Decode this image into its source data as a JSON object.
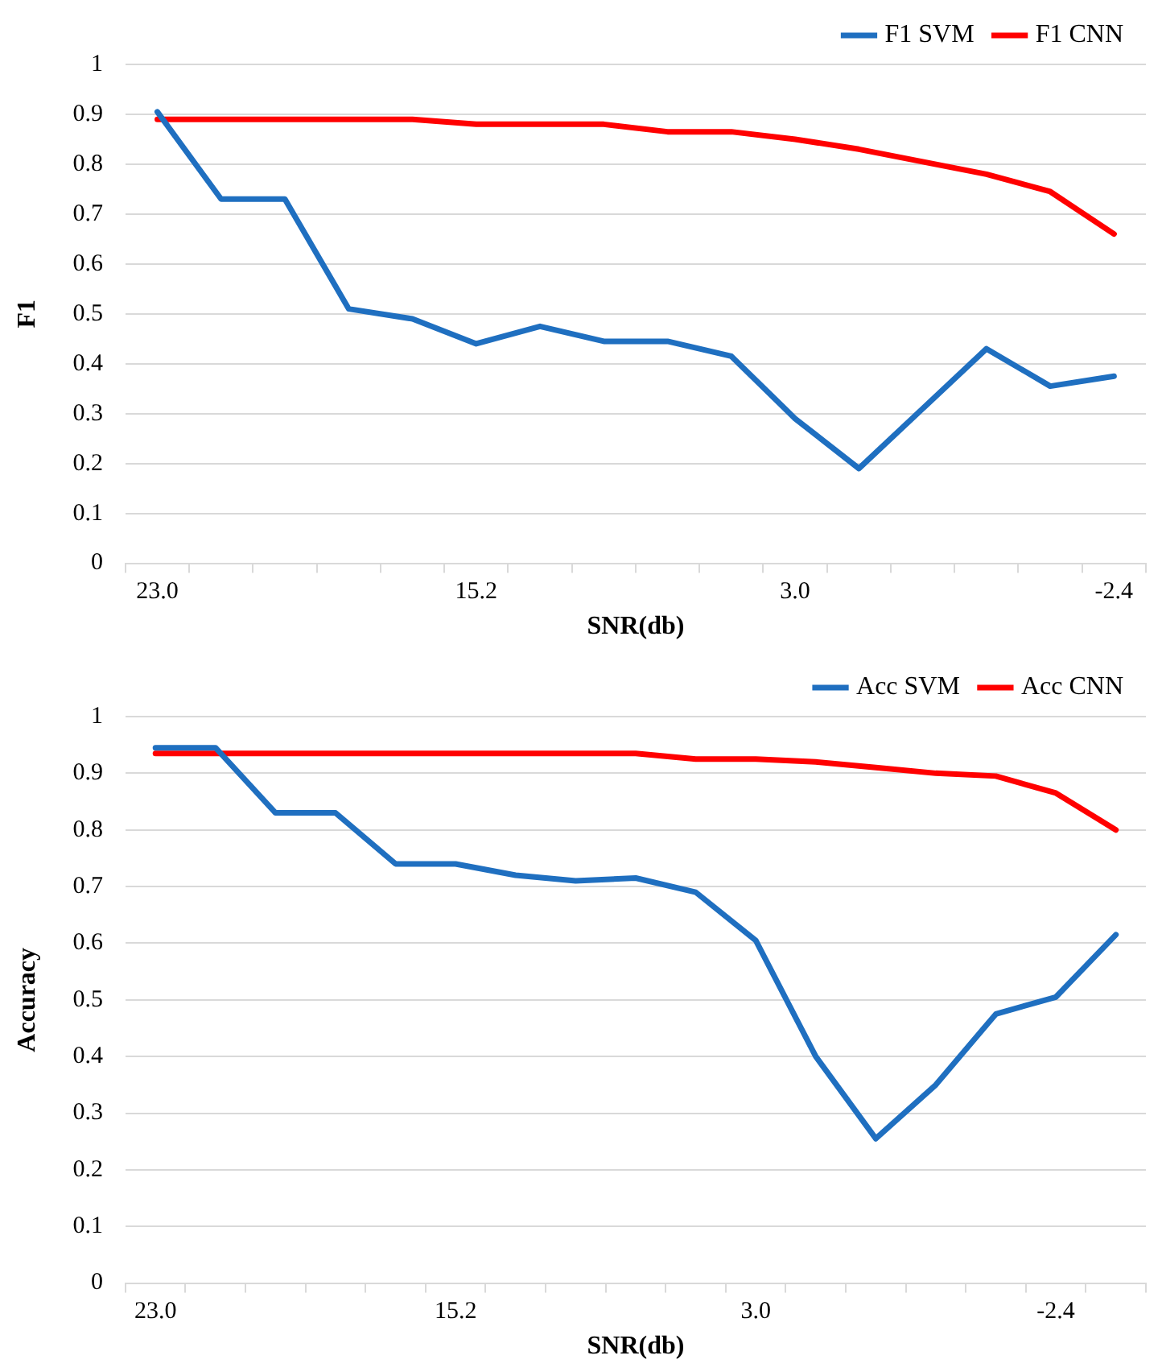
{
  "chart_data": [
    {
      "type": "line",
      "xlabel": "SNR(db)",
      "ylabel": "F1",
      "categories": [
        "23.0",
        null,
        null,
        null,
        null,
        "15.2",
        null,
        null,
        null,
        null,
        "3.0",
        null,
        null,
        null,
        null,
        "-2.4"
      ],
      "series": [
        {
          "name": "F1 SVM",
          "color": "#1f6fc0",
          "values": [
            0.905,
            0.73,
            0.73,
            0.51,
            0.49,
            0.44,
            0.475,
            0.445,
            0.445,
            0.415,
            0.29,
            0.19,
            0.31,
            0.43,
            0.355,
            0.375
          ]
        },
        {
          "name": "F1 CNN",
          "color": "#ff0000",
          "values": [
            0.89,
            0.89,
            0.89,
            0.89,
            0.89,
            0.88,
            0.88,
            0.88,
            0.865,
            0.865,
            0.85,
            0.83,
            0.805,
            0.78,
            0.745,
            0.66
          ]
        }
      ],
      "ylim": [
        0,
        1
      ],
      "yticks": [
        0,
        0.1,
        0.2,
        0.3,
        0.4,
        0.5,
        0.6,
        0.7,
        0.8,
        0.9,
        1
      ],
      "grid": "y",
      "legend": "top right",
      "marker": "none",
      "line_style": "solid"
    },
    {
      "type": "line",
      "xlabel": "SNR(db)",
      "ylabel": "Accuracy",
      "categories": [
        "23.0",
        null,
        null,
        null,
        null,
        "15.2",
        null,
        null,
        null,
        null,
        "3.0",
        null,
        null,
        null,
        null,
        "-2.4",
        null
      ],
      "series": [
        {
          "name": "Acc SVM",
          "color": "#1f6fc0",
          "values": [
            0.945,
            0.945,
            0.83,
            0.83,
            0.74,
            0.74,
            0.72,
            0.71,
            0.715,
            0.69,
            0.605,
            0.4,
            0.255,
            0.35,
            0.475,
            0.505,
            0.615
          ]
        },
        {
          "name": "Acc CNN",
          "color": "#ff0000",
          "values": [
            0.935,
            0.935,
            0.935,
            0.935,
            0.935,
            0.935,
            0.935,
            0.935,
            0.935,
            0.925,
            0.925,
            0.92,
            0.91,
            0.9,
            0.895,
            0.865,
            0.8
          ]
        }
      ],
      "ylim": [
        0,
        1
      ],
      "yticks": [
        0,
        0.1,
        0.2,
        0.3,
        0.4,
        0.5,
        0.6,
        0.7,
        0.8,
        0.9,
        1
      ],
      "grid": "y",
      "legend": "top right",
      "marker": "none",
      "line_style": "solid"
    }
  ]
}
